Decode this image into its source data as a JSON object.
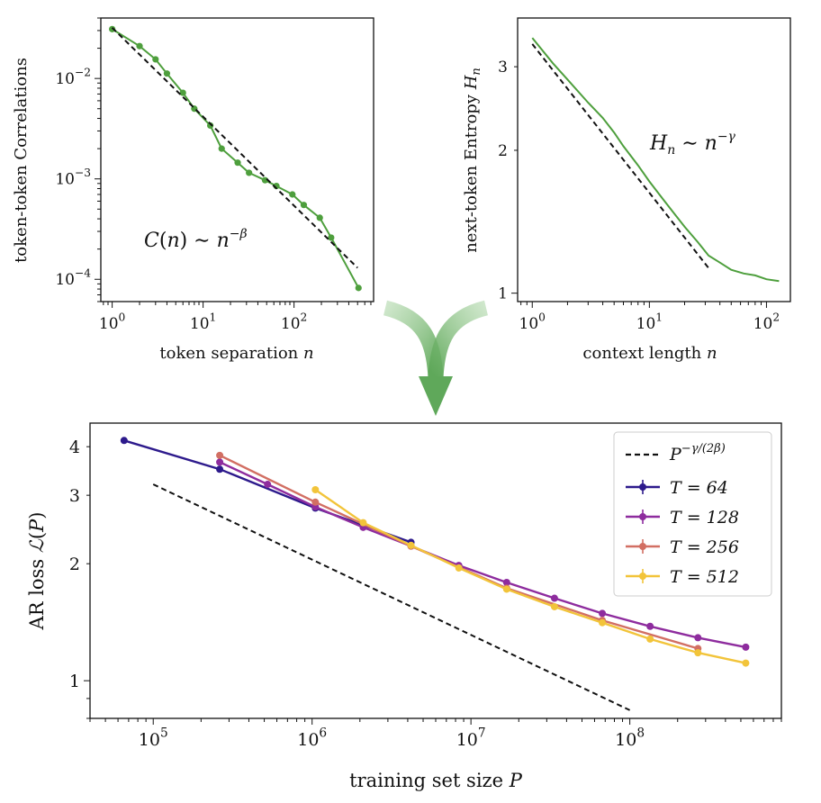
{
  "colors": {
    "green": "#4e9f3d",
    "dashed": "#111111",
    "arrow": "#5fa85a",
    "T64": "#2d1a8c",
    "T128": "#8e2c9e",
    "T256": "#d26f63",
    "T512": "#f2c43a"
  },
  "chart_data": [
    {
      "type": "line",
      "xlabel": "token separation n",
      "ylabel": "token-token Correlations",
      "xscale": "log",
      "yscale": "log",
      "xlim": [
        0.75,
        750
      ],
      "ylim": [
        6e-05,
        0.04
      ],
      "xticks": [
        {
          "value": 1,
          "label": "10^0"
        },
        {
          "value": 10,
          "label": "10^1"
        },
        {
          "value": 100,
          "label": "10^2"
        }
      ],
      "yticks": [
        {
          "value": 0.0001,
          "label": "10^-4"
        },
        {
          "value": 0.001,
          "label": "10^-3"
        },
        {
          "value": 0.01,
          "label": "10^-2"
        }
      ],
      "annotation": "C(n) ~ n^-β",
      "series": [
        {
          "style": "green-markers",
          "x": [
            1,
            2,
            3,
            4,
            6,
            8,
            12,
            16,
            24,
            32,
            48,
            64,
            96,
            128,
            192,
            256,
            512
          ],
          "y": [
            0.031,
            0.021,
            0.0155,
            0.0112,
            0.0072,
            0.005,
            0.0034,
            0.002,
            0.00145,
            0.00115,
            0.00097,
            0.00085,
            0.0007,
            0.00055,
            0.00041,
            0.00026,
            8.2e-05
          ]
        },
        {
          "style": "dashed",
          "x": [
            1,
            500
          ],
          "y": [
            0.032,
            0.00013
          ]
        }
      ]
    },
    {
      "type": "line",
      "xlabel": "context length n",
      "ylabel": "next-token Entropy H_n",
      "xscale": "log",
      "yscale": "log",
      "xlim": [
        0.75,
        160
      ],
      "ylim": [
        0.96,
        3.8
      ],
      "xticks": [
        {
          "value": 1,
          "label": "10^0"
        },
        {
          "value": 10,
          "label": "10^1"
        },
        {
          "value": 100,
          "label": "10^2"
        }
      ],
      "yticks": [
        {
          "value": 1,
          "label": "1"
        },
        {
          "value": 2,
          "label": "2"
        },
        {
          "value": 3,
          "label": "3"
        }
      ],
      "annotation": "H_n ~ n^-γ",
      "series": [
        {
          "style": "green-line",
          "x": [
            1,
            1.5,
            2,
            3,
            4,
            5,
            6,
            8,
            10,
            13,
            16,
            20,
            26,
            32,
            40,
            50,
            64,
            80,
            100,
            128
          ],
          "y": [
            3.45,
            3.05,
            2.82,
            2.52,
            2.34,
            2.18,
            2.04,
            1.86,
            1.72,
            1.58,
            1.48,
            1.38,
            1.28,
            1.2,
            1.16,
            1.12,
            1.1,
            1.09,
            1.07,
            1.06
          ]
        },
        {
          "style": "dashed",
          "x": [
            1,
            32
          ],
          "y": [
            3.35,
            1.13
          ]
        }
      ]
    },
    {
      "type": "line",
      "xlabel": "training set size P",
      "ylabel": "AR loss L(P)",
      "xscale": "log",
      "yscale": "log",
      "xlim": [
        40000,
        900000000
      ],
      "ylim": [
        0.8,
        4.6
      ],
      "xticks": [
        {
          "value": 100000,
          "label": "10^5"
        },
        {
          "value": 1000000,
          "label": "10^6"
        },
        {
          "value": 10000000,
          "label": "10^7"
        },
        {
          "value": 100000000,
          "label": "10^8"
        }
      ],
      "yticks": [
        {
          "value": 1,
          "label": "1"
        },
        {
          "value": 2,
          "label": "2"
        },
        {
          "value": 3,
          "label": "3"
        },
        {
          "value": 4,
          "label": "4"
        }
      ],
      "legend_position": "upper right",
      "legend": {
        "dashed": "P^-γ/(2β)",
        "T64": "T = 64",
        "T128": "T = 128",
        "T256": "T = 256",
        "T512": "T = 512"
      },
      "series": [
        {
          "key": "T64",
          "x": [
            65536,
            262144,
            1048576,
            4194304
          ],
          "y": [
            4.15,
            3.5,
            2.78,
            2.27
          ]
        },
        {
          "key": "T128",
          "x": [
            262144,
            524288,
            1048576,
            2097152,
            4194304,
            8388608,
            16777216,
            33554432,
            67108864,
            134217728,
            268435456,
            536870912
          ],
          "y": [
            3.65,
            3.2,
            2.8,
            2.48,
            2.22,
            1.98,
            1.79,
            1.63,
            1.49,
            1.38,
            1.29,
            1.22
          ]
        },
        {
          "key": "T256",
          "x": [
            262144,
            1048576,
            4194304,
            16777216,
            67108864,
            268435456
          ],
          "y": [
            3.8,
            2.88,
            2.22,
            1.73,
            1.43,
            1.21
          ]
        },
        {
          "key": "T512",
          "x": [
            1048576,
            2097152,
            4194304,
            8388608,
            16777216,
            33554432,
            67108864,
            134217728,
            268435456,
            536870912
          ],
          "y": [
            3.1,
            2.55,
            2.23,
            1.95,
            1.72,
            1.55,
            1.41,
            1.28,
            1.18,
            1.11
          ]
        },
        {
          "key": "dashed",
          "x": [
            100000,
            100000000
          ],
          "y": [
            3.2,
            0.84
          ]
        }
      ]
    }
  ]
}
